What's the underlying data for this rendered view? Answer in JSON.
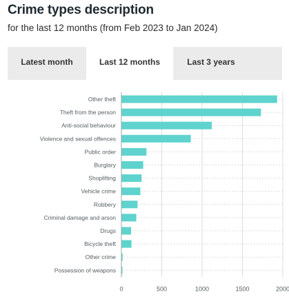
{
  "header": {
    "title": "Crime types description",
    "subtitle": "for the last 12 months (from Feb 2023 to Jan 2024)"
  },
  "tabs": [
    {
      "label": "Latest month",
      "active": false
    },
    {
      "label": "Last 12 months",
      "active": true
    },
    {
      "label": "Last 3 years",
      "active": false
    }
  ],
  "colors": {
    "bar": "#5fd3cd",
    "grid": "#d9dde0",
    "axis": "#9aa3a8",
    "label": "#555d62"
  },
  "chart_data": {
    "type": "bar",
    "orientation": "horizontal",
    "categories": [
      "Other theft",
      "Theft from the person",
      "Anti-social behaviour",
      "Violence and sexual offences",
      "Public order",
      "Burglary",
      "Shoplifting",
      "Vehicle crime",
      "Robbery",
      "Criminal damage and arson",
      "Drugs",
      "Bicycle theft",
      "Other crime",
      "Possession of weapons"
    ],
    "values": [
      1930,
      1730,
      1120,
      860,
      310,
      270,
      250,
      235,
      200,
      185,
      120,
      125,
      15,
      5
    ],
    "xlim": [
      0,
      2000
    ],
    "xticks": [
      0,
      500,
      1000,
      1500,
      2000
    ],
    "grid": true
  }
}
